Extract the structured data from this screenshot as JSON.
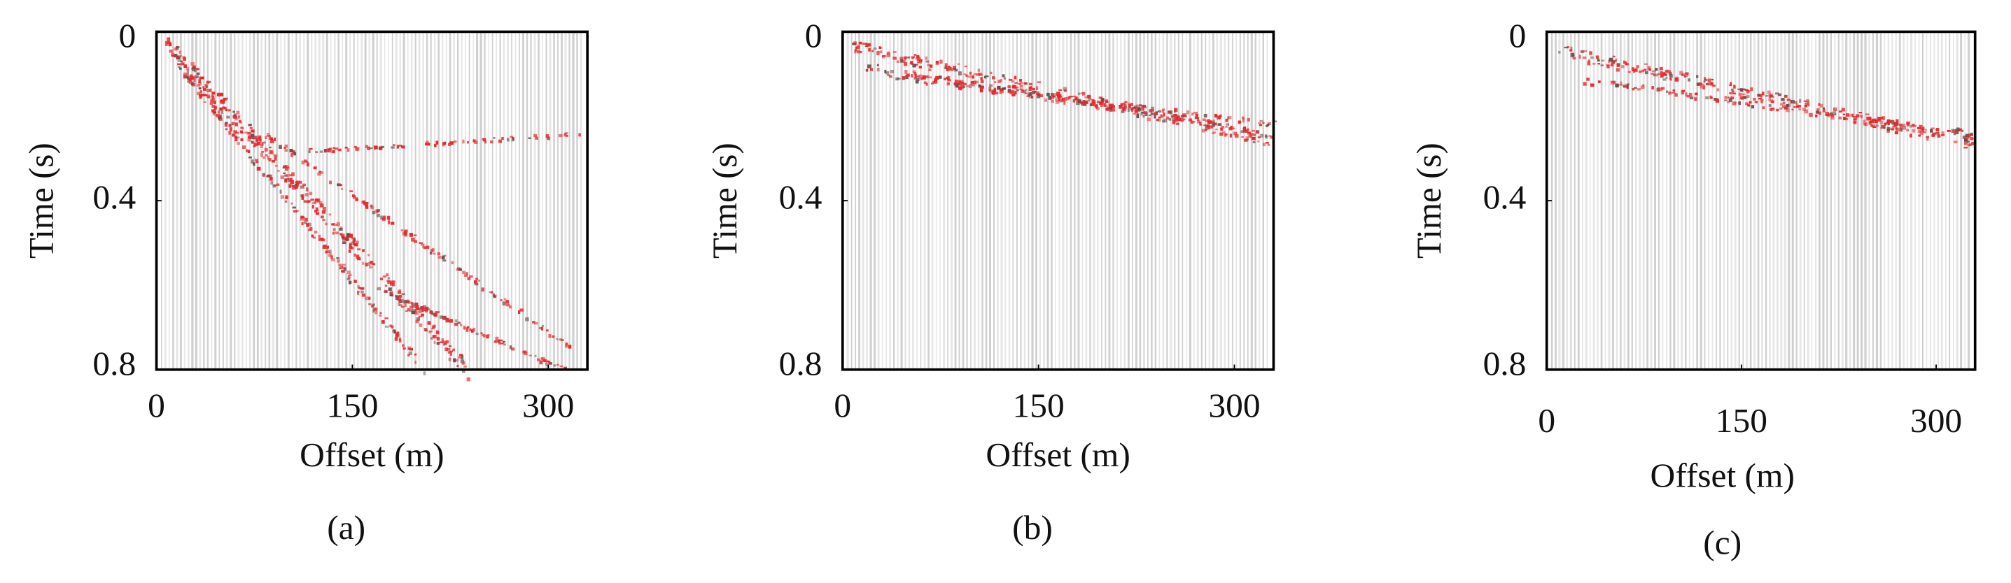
{
  "chart_data": [
    {
      "type": "seismic",
      "x_label": "Offset (m)",
      "y_label": "Time (s)",
      "caption": "(a)",
      "xlim": [
        0,
        330
      ],
      "xticks": [
        0,
        150,
        300
      ],
      "ylim": [
        0,
        0.8
      ],
      "yticks": [
        0,
        0.4,
        0.8
      ],
      "y_inverted": true
    },
    {
      "type": "seismic",
      "x_label": "Offset (m)",
      "y_label": "Time (s)",
      "caption": "(b)",
      "xlim": [
        0,
        330
      ],
      "xticks": [
        0,
        150,
        300
      ],
      "ylim": [
        0,
        0.8
      ],
      "yticks": [
        0,
        0.4,
        0.8
      ],
      "y_inverted": true
    },
    {
      "type": "seismic",
      "x_label": "Offset (m)",
      "y_label": "Time (s)",
      "caption": "(c)",
      "xlim": [
        0,
        330
      ],
      "xticks": [
        0,
        150,
        300
      ],
      "ylim": [
        0,
        0.8
      ],
      "yticks": [
        0,
        0.4,
        0.8
      ],
      "y_inverted": true
    }
  ]
}
